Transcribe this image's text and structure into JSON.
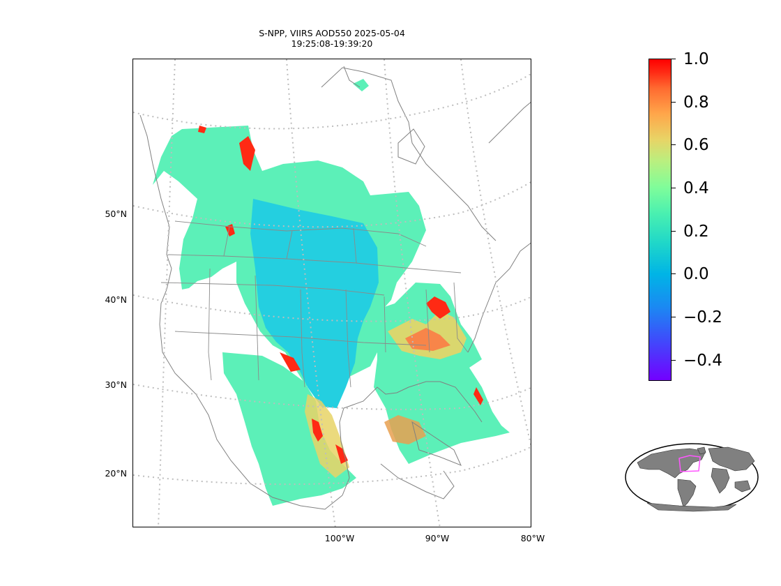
{
  "title": {
    "line1": "S-NPP, VIIRS AOD550 2025-05-04",
    "line2": "19:25:08-19:39:20"
  },
  "map": {
    "lat_labels": [
      "50°N",
      "40°N",
      "30°N",
      "20°N"
    ],
    "lon_labels": [
      "100°W",
      "90°W",
      "80°W"
    ],
    "gridline_style": "dotted-gray",
    "coastline_color": "#808080"
  },
  "colorbar": {
    "ticks": [
      "1.0",
      "0.8",
      "0.6",
      "0.4",
      "0.2",
      "0.0",
      "−0.2",
      "−0.4"
    ],
    "colormap": "rainbow",
    "vmin": -0.5,
    "vmax": 1.0
  },
  "inset": {
    "type": "world-overview",
    "land_color": "#808080",
    "highlight_color": "#ff55ff"
  }
}
